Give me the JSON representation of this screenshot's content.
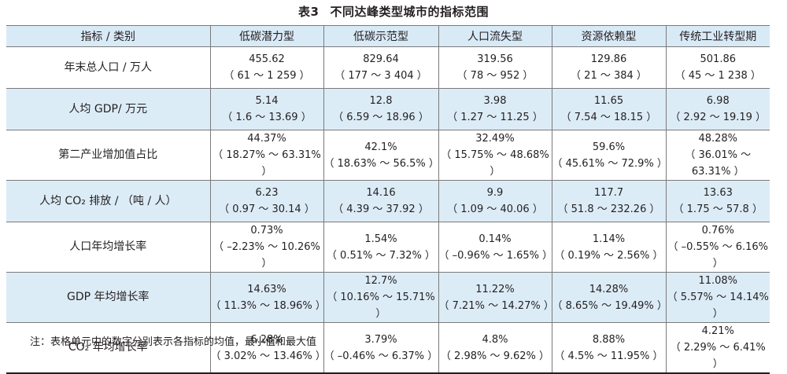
{
  "title": {
    "number": "表3",
    "text": "不同达峰类型城市的指标范围"
  },
  "table": {
    "headers": [
      "指标 / 类别",
      "低碳潜力型",
      "低碳示范型",
      "人口流失型",
      "资源依赖型",
      "传统工业转型期"
    ],
    "rows": [
      {
        "label": "年末总人口 / 万人",
        "cells": [
          {
            "mean": "455.62",
            "range": "（ 61 ～ 1 259 ）"
          },
          {
            "mean": "829.64",
            "range": "（ 177 ～ 3 404 ）"
          },
          {
            "mean": "319.56",
            "range": "（ 78 ～ 952 ）"
          },
          {
            "mean": "129.86",
            "range": "（ 21 ～ 384 ）"
          },
          {
            "mean": "501.86",
            "range": "（ 45 ～ 1 238 ）"
          }
        ]
      },
      {
        "label": "人均 GDP/ 万元",
        "cells": [
          {
            "mean": "5.14",
            "range": "（ 1.6 ～ 13.69 ）"
          },
          {
            "mean": "12.8",
            "range": "（ 6.59 ～ 18.96 ）"
          },
          {
            "mean": "3.98",
            "range": "（ 1.27 ～ 11.25 ）"
          },
          {
            "mean": "11.65",
            "range": "（ 7.54 ～ 18.15 ）"
          },
          {
            "mean": "6.98",
            "range": "（ 2.92 ～ 19.19 ）"
          }
        ]
      },
      {
        "label": "第二产业增加值占比",
        "cells": [
          {
            "mean": "44.37%",
            "range": "（ 18.27% ～ 63.31% ）"
          },
          {
            "mean": "42.1%",
            "range": "（ 18.63% ～ 56.5% ）"
          },
          {
            "mean": "32.49%",
            "range": "（ 15.75% ～ 48.68% ）"
          },
          {
            "mean": "59.6%",
            "range": "（ 45.61% ～ 72.9% ）"
          },
          {
            "mean": "48.28%",
            "range": "（ 36.01% ～ 63.31% ）"
          }
        ]
      },
      {
        "label": "人均 CO₂ 排放 / （吨 / 人）",
        "cells": [
          {
            "mean": "6.23",
            "range": "（ 0.97 ～ 30.14 ）"
          },
          {
            "mean": "14.16",
            "range": "（ 4.39 ～ 37.92 ）"
          },
          {
            "mean": "9.9",
            "range": "（ 1.09 ～ 40.06 ）"
          },
          {
            "mean": "117.7",
            "range": "（ 51.8 ～ 232.26 ）"
          },
          {
            "mean": "13.63",
            "range": "（ 1.75 ～ 57.8 ）"
          }
        ]
      },
      {
        "label": "人口年均增长率",
        "cells": [
          {
            "mean": "0.73%",
            "range": "（ –2.23% ～ 10.26% ）"
          },
          {
            "mean": "1.54%",
            "range": "（ 0.51% ～ 7.32% ）"
          },
          {
            "mean": "0.14%",
            "range": "（ –0.96% ～ 1.65% ）"
          },
          {
            "mean": "1.14%",
            "range": "（ 0.19% ～ 2.56% ）"
          },
          {
            "mean": "0.76%",
            "range": "（ –0.55% ～ 6.16% ）"
          }
        ]
      },
      {
        "label": "GDP 年均增长率",
        "cells": [
          {
            "mean": "14.63%",
            "range": "（ 11.3% ～ 18.96% ）"
          },
          {
            "mean": "12.7%",
            "range": "（ 10.16% ～ 15.71% ）"
          },
          {
            "mean": "11.22%",
            "range": "（ 7.21% ～ 14.27% ）"
          },
          {
            "mean": "14.28%",
            "range": "（ 8.65% ～ 19.49% ）"
          },
          {
            "mean": "11.08%",
            "range": "（ 5.57% ～ 14.14% ）"
          }
        ]
      },
      {
        "label": "CO₂ 年均增长率",
        "cells": [
          {
            "mean": "6.28%",
            "range": "（ 3.02% ～ 13.46% ）"
          },
          {
            "mean": "3.79%",
            "range": "（ –0.46% ～ 6.37% ）"
          },
          {
            "mean": "4.8%",
            "range": "（ 2.98% ～ 9.62% ）"
          },
          {
            "mean": "8.88%",
            "range": "（ 4.5% ～ 11.95% ）"
          },
          {
            "mean": "4.21%",
            "range": "（ 2.29% ～ 6.41% ）"
          }
        ]
      }
    ]
  },
  "note": "注：表格单元中的数字分别表示各指标的均值，最小值和最大值",
  "colors": {
    "header_bg": "#d9eaf7",
    "stripe_bg": "#dcecf7",
    "border": "#7a7a7a",
    "text": "#231f20"
  }
}
